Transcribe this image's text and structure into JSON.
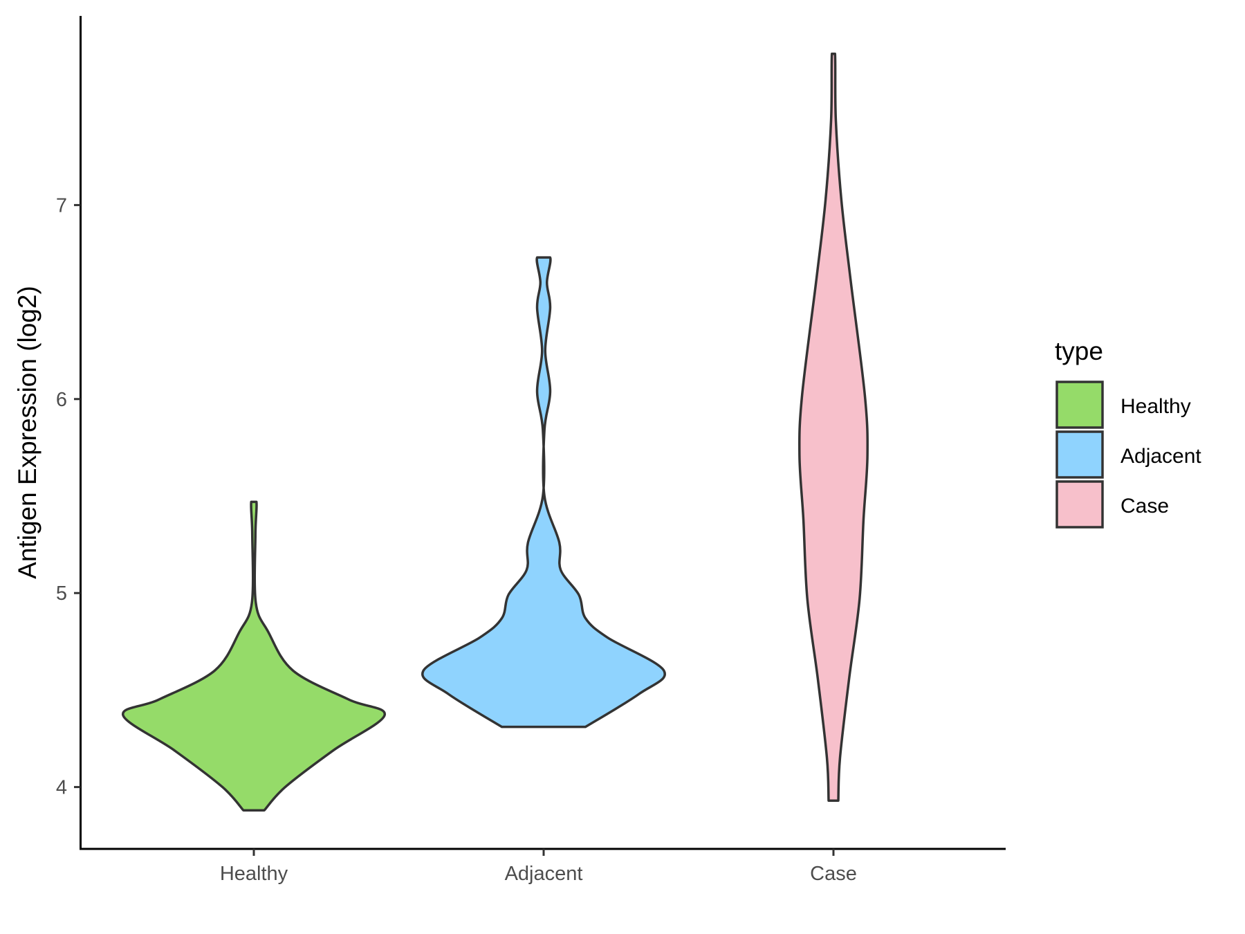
{
  "chart_data": {
    "type": "violin",
    "title": "",
    "xlabel": "",
    "ylabel": "Antigen Expression (log2)",
    "ylim": [
      3.68,
      8.0
    ],
    "yticks": [
      "4",
      "5",
      "6",
      "7"
    ],
    "categories": [
      "Healthy",
      "Adjacent",
      "Case"
    ],
    "legend": {
      "title": "type",
      "placement": "right",
      "entries": [
        "Healthy",
        "Adjacent",
        "Case"
      ]
    },
    "colors": {
      "Healthy": "#95DB69",
      "Adjacent": "#8FD3FE",
      "Case": "#F7C0CB",
      "outline": "#333333"
    },
    "series": [
      {
        "name": "Healthy",
        "min": 3.88,
        "max": 5.47,
        "profile": [
          [
            3.88,
            0.08
          ],
          [
            4.0,
            0.24
          ],
          [
            4.19,
            0.61
          ],
          [
            4.37,
            1.0
          ],
          [
            4.45,
            0.73
          ],
          [
            4.6,
            0.3
          ],
          [
            4.8,
            0.11
          ],
          [
            4.95,
            0.015
          ],
          [
            5.3,
            0.012
          ],
          [
            5.47,
            0.02
          ]
        ]
      },
      {
        "name": "Adjacent",
        "min": 4.31,
        "max": 6.73,
        "profile": [
          [
            4.31,
            0.32
          ],
          [
            4.48,
            0.73
          ],
          [
            4.6,
            0.92
          ],
          [
            4.77,
            0.49
          ],
          [
            4.87,
            0.32
          ],
          [
            4.99,
            0.27
          ],
          [
            5.12,
            0.13
          ],
          [
            5.26,
            0.12
          ],
          [
            5.5,
            0.006
          ],
          [
            5.84,
            0.006
          ],
          [
            6.04,
            0.05
          ],
          [
            6.25,
            0.012
          ],
          [
            6.47,
            0.05
          ],
          [
            6.6,
            0.025
          ],
          [
            6.73,
            0.05
          ]
        ]
      },
      {
        "name": "Case",
        "min": 3.93,
        "max": 7.78,
        "profile": [
          [
            3.93,
            0.037
          ],
          [
            4.15,
            0.05
          ],
          [
            4.56,
            0.12
          ],
          [
            4.97,
            0.2
          ],
          [
            5.38,
            0.23
          ],
          [
            5.71,
            0.26
          ],
          [
            6.02,
            0.24
          ],
          [
            6.62,
            0.13
          ],
          [
            7.03,
            0.06
          ],
          [
            7.44,
            0.018
          ],
          [
            7.78,
            0.012
          ]
        ]
      }
    ]
  }
}
